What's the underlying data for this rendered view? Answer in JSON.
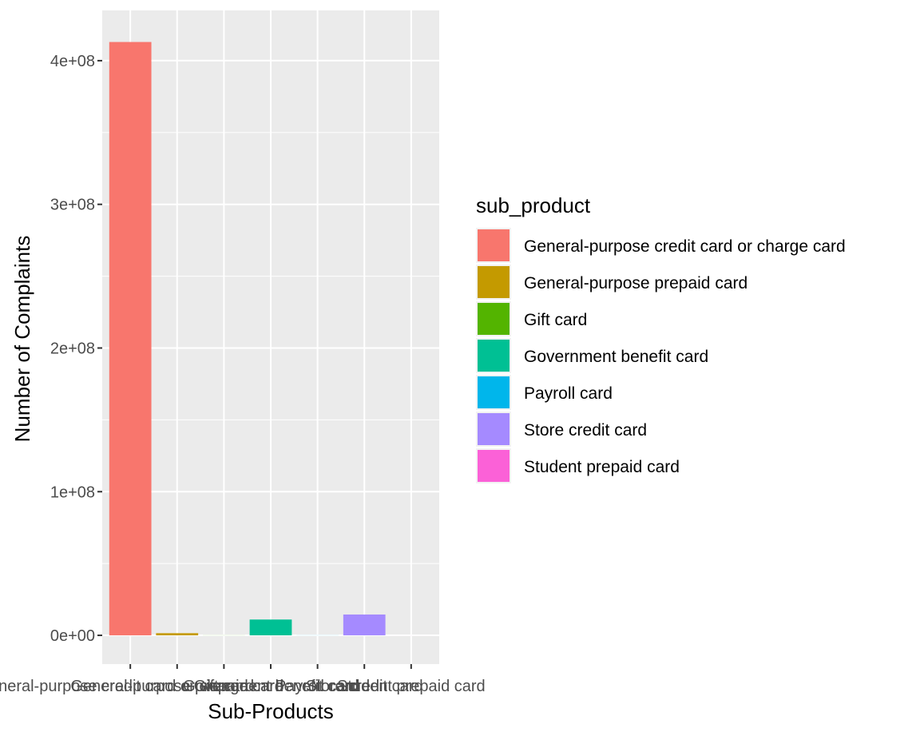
{
  "chart_data": {
    "type": "bar",
    "title": "",
    "xlabel": "Sub-Products",
    "ylabel": "Number of Complaints",
    "categories": [
      "General-purpose credit card or charge card",
      "General-purpose prepaid card",
      "Gift card",
      "Government benefit card",
      "Payroll card",
      "Store credit card",
      "Student prepaid card"
    ],
    "values": [
      413000000,
      1500000,
      60000,
      11000000,
      60000,
      14500000,
      20000
    ],
    "colors": [
      "#F8766D",
      "#C49A00",
      "#53B400",
      "#00C094",
      "#00B6EB",
      "#A58AFF",
      "#FB61D7"
    ],
    "ylim": [
      -20000000,
      435000000
    ],
    "y_ticks": [
      0,
      100000000,
      200000000,
      300000000,
      400000000
    ],
    "y_tick_labels": [
      "0e+00",
      "1e+08",
      "2e+08",
      "3e+08",
      "4e+08"
    ],
    "grid": true,
    "legend": {
      "title": "sub_product",
      "position": "right",
      "items": [
        "General-purpose credit card or charge card",
        "General-purpose prepaid card",
        "Gift card",
        "Government benefit card",
        "Payroll card",
        "Store credit card",
        "Student prepaid card"
      ]
    }
  }
}
